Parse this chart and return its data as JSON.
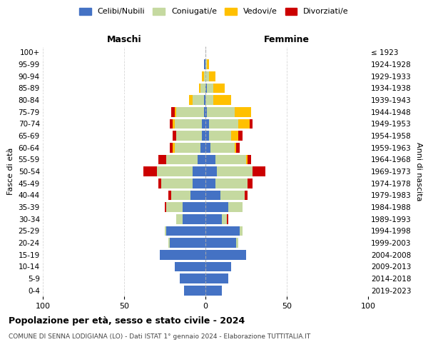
{
  "age_groups": [
    "0-4",
    "5-9",
    "10-14",
    "15-19",
    "20-24",
    "25-29",
    "30-34",
    "35-39",
    "40-44",
    "45-49",
    "50-54",
    "55-59",
    "60-64",
    "65-69",
    "70-74",
    "75-79",
    "80-84",
    "85-89",
    "90-94",
    "95-99",
    "100+"
  ],
  "birth_years": [
    "2019-2023",
    "2014-2018",
    "2009-2013",
    "2004-2008",
    "1999-2003",
    "1994-1998",
    "1989-1993",
    "1984-1988",
    "1979-1983",
    "1974-1978",
    "1969-1973",
    "1964-1968",
    "1959-1963",
    "1954-1958",
    "1949-1953",
    "1944-1948",
    "1939-1943",
    "1934-1938",
    "1929-1933",
    "1924-1928",
    "≤ 1923"
  ],
  "maschi_celibi": [
    13,
    16,
    19,
    28,
    22,
    24,
    14,
    14,
    9,
    8,
    8,
    5,
    3,
    2,
    2,
    1,
    1,
    0,
    0,
    1,
    0
  ],
  "maschi_coniugati": [
    0,
    0,
    0,
    0,
    1,
    1,
    4,
    10,
    12,
    19,
    22,
    19,
    16,
    16,
    17,
    17,
    7,
    3,
    1,
    0,
    0
  ],
  "maschi_vedovi": [
    0,
    0,
    0,
    0,
    0,
    0,
    0,
    0,
    0,
    0,
    0,
    0,
    1,
    0,
    1,
    1,
    2,
    1,
    1,
    0,
    0
  ],
  "maschi_divorziati": [
    0,
    0,
    0,
    0,
    0,
    0,
    0,
    1,
    2,
    2,
    8,
    5,
    2,
    2,
    2,
    2,
    0,
    0,
    0,
    0,
    0
  ],
  "femmine_celibi": [
    10,
    14,
    16,
    25,
    19,
    21,
    10,
    14,
    9,
    6,
    7,
    6,
    3,
    2,
    2,
    1,
    0,
    1,
    0,
    0,
    0
  ],
  "femmine_coniugati": [
    0,
    0,
    0,
    0,
    1,
    2,
    3,
    9,
    15,
    20,
    22,
    19,
    15,
    14,
    18,
    17,
    5,
    4,
    2,
    1,
    0
  ],
  "femmine_vedovi": [
    0,
    0,
    0,
    0,
    0,
    0,
    0,
    0,
    0,
    0,
    0,
    1,
    1,
    4,
    7,
    10,
    11,
    7,
    4,
    1,
    0
  ],
  "femmine_divorziati": [
    0,
    0,
    0,
    0,
    0,
    0,
    1,
    0,
    2,
    3,
    8,
    2,
    2,
    3,
    2,
    0,
    0,
    0,
    0,
    0,
    0
  ],
  "colors": {
    "celibi": "#4472c4",
    "coniugati": "#c5d9a0",
    "vedovi": "#ffc000",
    "divorziati": "#cc0000"
  },
  "legend_labels": [
    "Celibi/Nubili",
    "Coniugati/e",
    "Vedovi/e",
    "Divorziati/e"
  ],
  "title1": "Popolazione per età, sesso e stato civile - 2024",
  "title2": "COMUNE DI SENNA LODIGIANA (LO) - Dati ISTAT 1° gennaio 2024 - Elaborazione TUTTITALIA.IT",
  "xlabel_left": "Maschi",
  "xlabel_right": "Femmine",
  "ylabel_left": "Fasce di età",
  "ylabel_right": "Anni di nascita",
  "xlim": 100
}
